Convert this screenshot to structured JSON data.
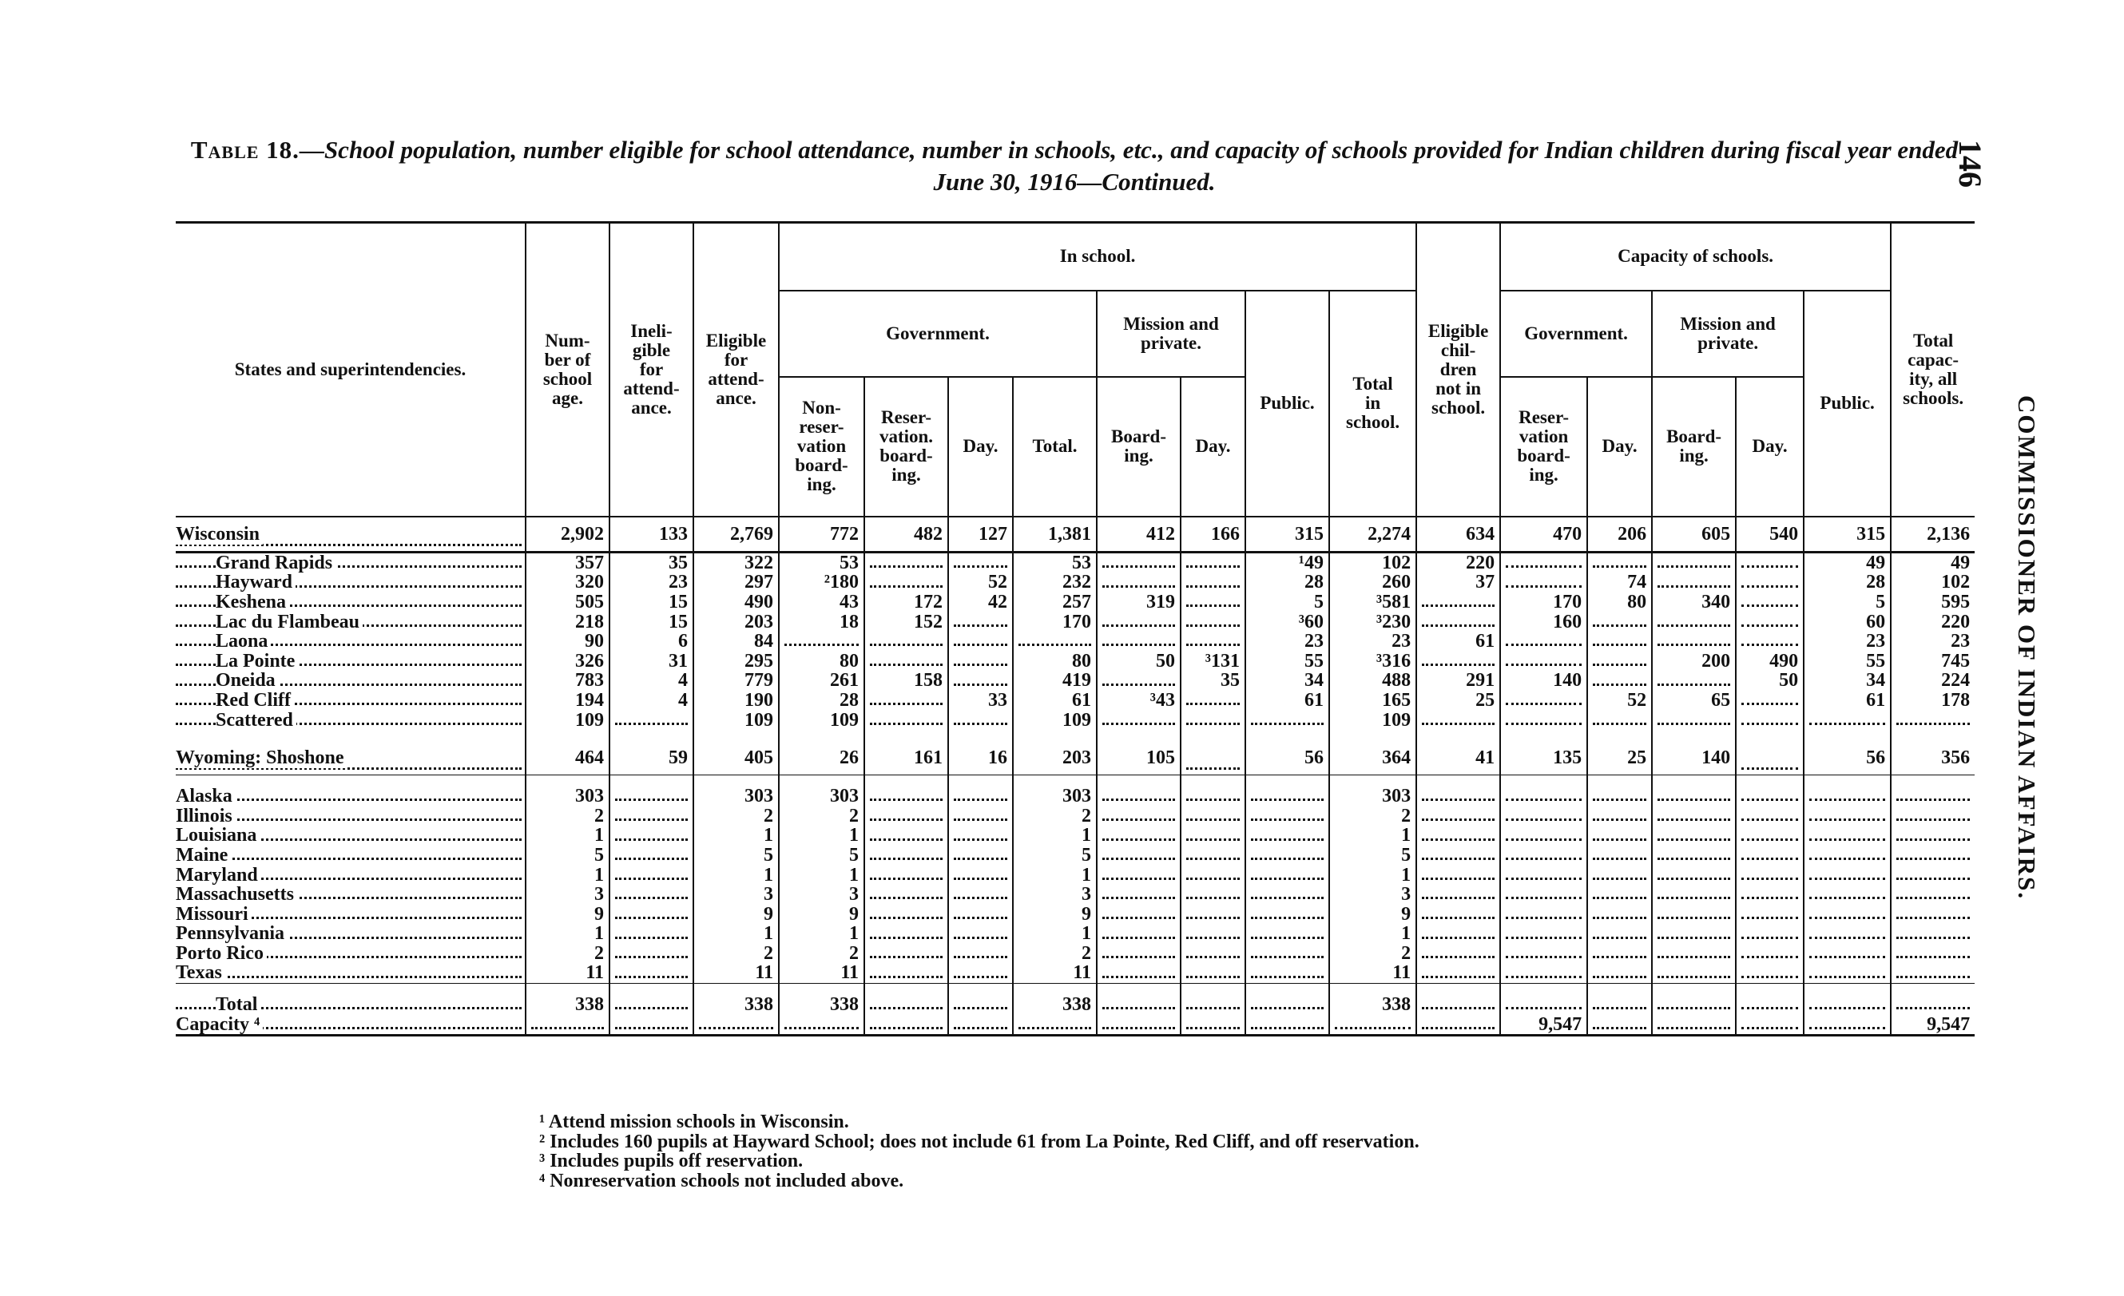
{
  "title": {
    "label": "Table 18.",
    "text": "—School population, number eligible for school attendance, number in schools, etc., and capacity of schools provided for Indian children during fiscal year ended June 30, 1916—Continued."
  },
  "page_number": "146",
  "running_head": "COMMISSIONER OF INDIAN AFFAIRS.",
  "headers": {
    "states": "States and superintendencies.",
    "school_age": "Num-\nber of\nschool\nage.",
    "ineligible": "Ineli-\ngible\nfor\nattend-\nance.",
    "eligible": "Eligible\nfor\nattend-\nance.",
    "in_school": "In school.",
    "government": "Government.",
    "mission_private": "Mission and\nprivate.",
    "nonres_boarding": "Non-\nreser-\nvation\nboard-\ning.",
    "res_boarding": "Reser-\nvation.\nboard-\ning.",
    "day": "Day.",
    "total": "Total.",
    "boarding": "Board-\ning.",
    "public": "Public.",
    "total_in_school": "Total\nin\nschool.",
    "eligible_not_in_school": "Eligible\nchil-\ndren\nnot in\nschool.",
    "capacity": "Capacity of schools.",
    "cap_res_boarding": "Reser-\nvation\nboard-\ning.",
    "total_capacity": "Total\ncapac-\nity, all\nschools."
  },
  "rows": [
    {
      "name": "Wisconsin",
      "type": "state",
      "values": [
        "2,902",
        "133",
        "2,769",
        "772",
        "482",
        "127",
        "1,381",
        "412",
        "166",
        "315",
        "2,274",
        "634",
        "470",
        "206",
        "605",
        "540",
        "315",
        "2,136"
      ]
    },
    {
      "name": "Grand Rapids",
      "type": "sub",
      "values": [
        "357",
        "35",
        "322",
        "53",
        "",
        "",
        "53",
        "",
        "",
        "¹49",
        "102",
        "220",
        "",
        "",
        "",
        "",
        "49",
        "49"
      ]
    },
    {
      "name": "Hayward",
      "type": "sub",
      "values": [
        "320",
        "23",
        "297",
        "²180",
        "",
        "52",
        "232",
        "",
        "",
        "28",
        "260",
        "37",
        "",
        "74",
        "",
        "",
        "28",
        "102"
      ]
    },
    {
      "name": "Keshena",
      "type": "sub",
      "values": [
        "505",
        "15",
        "490",
        "43",
        "172",
        "42",
        "257",
        "319",
        "",
        "5",
        "³581",
        "",
        "170",
        "80",
        "340",
        "",
        "5",
        "595"
      ]
    },
    {
      "name": "Lac du Flambeau",
      "type": "sub",
      "values": [
        "218",
        "15",
        "203",
        "18",
        "152",
        "",
        "170",
        "",
        "",
        "³60",
        "³230",
        "",
        "160",
        "",
        "",
        "",
        "60",
        "220"
      ]
    },
    {
      "name": "Laona",
      "type": "sub",
      "values": [
        "90",
        "6",
        "84",
        "",
        "",
        "",
        "",
        "",
        "",
        "23",
        "23",
        "61",
        "",
        "",
        "",
        "",
        "23",
        "23"
      ]
    },
    {
      "name": "La Pointe",
      "type": "sub",
      "values": [
        "326",
        "31",
        "295",
        "80",
        "",
        "",
        "80",
        "50",
        "³131",
        "55",
        "³316",
        "",
        "",
        "",
        "200",
        "490",
        "55",
        "745"
      ]
    },
    {
      "name": "Oneida",
      "type": "sub",
      "values": [
        "783",
        "4",
        "779",
        "261",
        "158",
        "",
        "419",
        "",
        "35",
        "34",
        "488",
        "291",
        "140",
        "",
        "",
        "50",
        "34",
        "224"
      ]
    },
    {
      "name": "Red Cliff",
      "type": "sub",
      "values": [
        "194",
        "4",
        "190",
        "28",
        "",
        "33",
        "61",
        "³43",
        "",
        "61",
        "165",
        "25",
        "",
        "52",
        "65",
        "",
        "61",
        "178"
      ]
    },
    {
      "name": "Scattered",
      "type": "sub",
      "values": [
        "109",
        "",
        "109",
        "109",
        "",
        "",
        "109",
        "",
        "",
        "",
        "109",
        "",
        "",
        "",
        "",
        "",
        "",
        ""
      ]
    },
    {
      "name": "Wyoming: Shoshone",
      "type": "state",
      "values": [
        "464",
        "59",
        "405",
        "26",
        "161",
        "16",
        "203",
        "105",
        "",
        "56",
        "364",
        "41",
        "135",
        "25",
        "140",
        "",
        "56",
        "356"
      ]
    },
    {
      "name": "Alaska",
      "type": "other",
      "values": [
        "303",
        "",
        "303",
        "303",
        "",
        "",
        "303",
        "",
        "",
        "",
        "303",
        "",
        "",
        "",
        "",
        "",
        "",
        ""
      ]
    },
    {
      "name": "Illinois",
      "type": "other",
      "values": [
        "2",
        "",
        "2",
        "2",
        "",
        "",
        "2",
        "",
        "",
        "",
        "2",
        "",
        "",
        "",
        "",
        "",
        "",
        ""
      ]
    },
    {
      "name": "Louisiana",
      "type": "other",
      "values": [
        "1",
        "",
        "1",
        "1",
        "",
        "",
        "1",
        "",
        "",
        "",
        "1",
        "",
        "",
        "",
        "",
        "",
        "",
        ""
      ]
    },
    {
      "name": "Maine",
      "type": "other",
      "values": [
        "5",
        "",
        "5",
        "5",
        "",
        "",
        "5",
        "",
        "",
        "",
        "5",
        "",
        "",
        "",
        "",
        "",
        "",
        ""
      ]
    },
    {
      "name": "Maryland",
      "type": "other",
      "values": [
        "1",
        "",
        "1",
        "1",
        "",
        "",
        "1",
        "",
        "",
        "",
        "1",
        "",
        "",
        "",
        "",
        "",
        "",
        ""
      ]
    },
    {
      "name": "Massachusetts",
      "type": "other",
      "values": [
        "3",
        "",
        "3",
        "3",
        "",
        "",
        "3",
        "",
        "",
        "",
        "3",
        "",
        "",
        "",
        "",
        "",
        "",
        ""
      ]
    },
    {
      "name": "Missouri",
      "type": "other",
      "values": [
        "9",
        "",
        "9",
        "9",
        "",
        "",
        "9",
        "",
        "",
        "",
        "9",
        "",
        "",
        "",
        "",
        "",
        "",
        ""
      ]
    },
    {
      "name": "Pennsylvania",
      "type": "other",
      "values": [
        "1",
        "",
        "1",
        "1",
        "",
        "",
        "1",
        "",
        "",
        "",
        "1",
        "",
        "",
        "",
        "",
        "",
        "",
        ""
      ]
    },
    {
      "name": "Porto Rico",
      "type": "other",
      "values": [
        "2",
        "",
        "2",
        "2",
        "",
        "",
        "2",
        "",
        "",
        "",
        "2",
        "",
        "",
        "",
        "",
        "",
        "",
        ""
      ]
    },
    {
      "name": "Texas",
      "type": "other",
      "values": [
        "11",
        "",
        "11",
        "11",
        "",
        "",
        "11",
        "",
        "",
        "",
        "11",
        "",
        "",
        "",
        "",
        "",
        "",
        ""
      ]
    },
    {
      "name": "Total",
      "type": "total",
      "values": [
        "338",
        "",
        "338",
        "338",
        "",
        "",
        "338",
        "",
        "",
        "",
        "338",
        "",
        "",
        "",
        "",
        "",
        "",
        ""
      ]
    },
    {
      "name": "Capacity ⁴",
      "type": "capacity",
      "values": [
        "",
        "",
        "",
        "",
        "",
        "",
        "",
        "",
        "",
        "",
        "",
        "",
        "9,547",
        "",
        "",
        "",
        "",
        "9,547"
      ]
    }
  ],
  "footnotes": [
    "¹ Attend mission schools in Wisconsin.",
    "² Includes 160 pupils at Hayward School; does not include 61 from La Pointe, Red Cliff, and off reservation.",
    "³ Includes pupils off reservation.",
    "⁴ Nonreservation schools not included above."
  ]
}
